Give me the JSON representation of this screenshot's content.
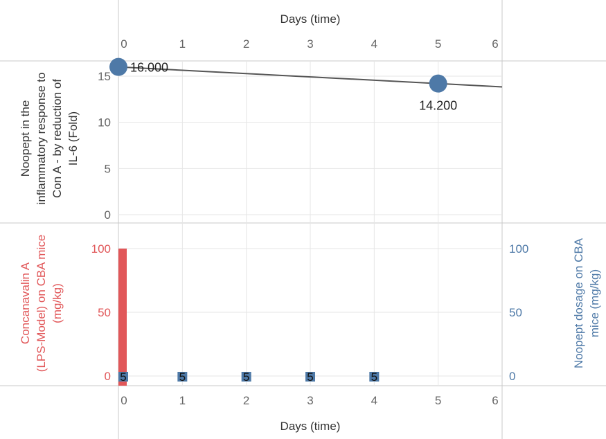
{
  "chart_data": [
    {
      "type": "line",
      "xlabel": "Days (time)",
      "ylabel": "Noopept in the inflammatory response to Con A - by reduction of IL-6 (Fold)",
      "ylabel_lines": [
        "Noopept in the",
        "inflammatory response to",
        "Con A - by reduction of",
        "IL-6 (Fold)"
      ],
      "x_ticks": [
        "0",
        "1",
        "2",
        "3",
        "4",
        "5",
        "6"
      ],
      "y_ticks": [
        "0",
        "5",
        "10",
        "15"
      ],
      "xlim": [
        0,
        6
      ],
      "ylim": [
        0,
        17.5
      ],
      "trend_line": {
        "x": [
          0,
          6
        ],
        "y": [
          16.0,
          13.84
        ]
      },
      "points": [
        {
          "x": 0,
          "y": 16.0,
          "label": "16.000"
        },
        {
          "x": 5,
          "y": 14.2,
          "label": "14.200"
        }
      ],
      "line_color": "#555555",
      "point_color": "#4e79a7",
      "grid": true
    },
    {
      "type": "bar",
      "xlabel": "Days (time)",
      "x_ticks": [
        "0",
        "1",
        "2",
        "3",
        "4",
        "5",
        "6"
      ],
      "xlim": [
        0,
        6
      ],
      "series": [
        {
          "name": "Concanavalin A (LPS-Model) on CBA mice (mg/kg)",
          "axis": "left",
          "color": "#e15759",
          "x": [
            0
          ],
          "values": [
            100
          ]
        },
        {
          "name": "Noopept dosage on CBA mice (mg/kg)",
          "axis": "right",
          "color": "#4e79a7",
          "x": [
            0,
            1,
            2,
            3,
            4
          ],
          "values": [
            5,
            5,
            5,
            5,
            5
          ],
          "labels": [
            "5",
            "5",
            "5",
            "5",
            "5"
          ]
        }
      ],
      "left_axis": {
        "title_lines": [
          "Concanavalin A",
          "(LPS-Model) on CBA mice",
          "(mg/kg)"
        ],
        "ticks": [
          "0",
          "50",
          "100"
        ],
        "ylim": [
          0,
          110
        ],
        "color": "#e15759"
      },
      "right_axis": {
        "title_lines": [
          "Noopept dosage on CBA",
          "mice (mg/kg)"
        ],
        "ticks": [
          "0",
          "50",
          "100"
        ],
        "ylim": [
          0,
          110
        ],
        "color": "#4e79a7"
      },
      "grid": true
    }
  ]
}
